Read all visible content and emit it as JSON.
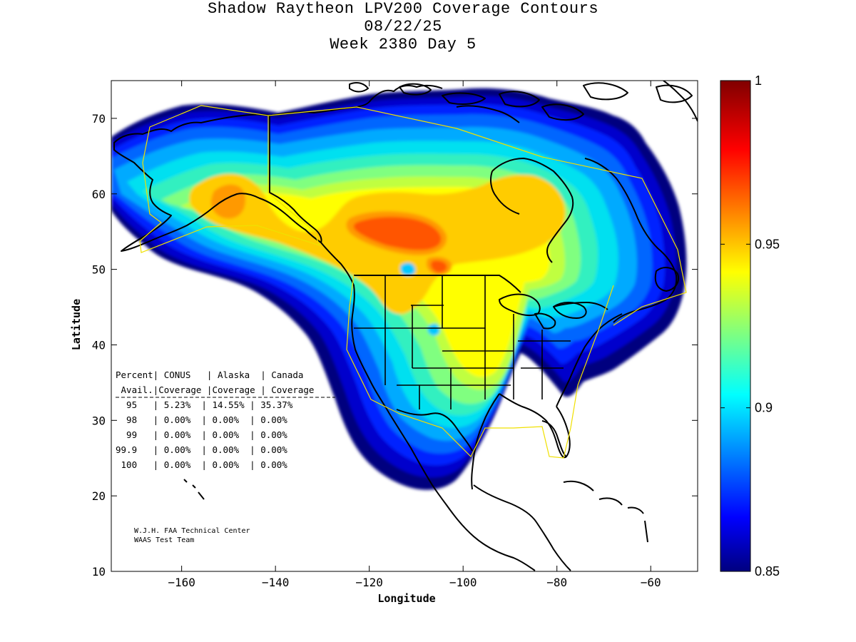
{
  "title": {
    "line1": "Shadow Raytheon LPV200 Coverage Contours",
    "line2": "08/22/25",
    "line3": "Week 2380 Day 5"
  },
  "chart_data": {
    "type": "heatmap",
    "xlabel": "Longitude",
    "ylabel": "Latitude",
    "xlim": [
      -175,
      -50
    ],
    "ylim": [
      10,
      75
    ],
    "x_ticks": [
      -160,
      -140,
      -120,
      -100,
      -80,
      -60
    ],
    "y_ticks": [
      10,
      20,
      30,
      40,
      50,
      60,
      70
    ],
    "colorbar": {
      "min": 0.85,
      "max": 1,
      "ticks": [
        {
          "value": 1,
          "label": "1"
        },
        {
          "value": 0.95,
          "label": "0.95"
        },
        {
          "value": 0.9,
          "label": "0.9"
        },
        {
          "value": 0.85,
          "label": "0.85"
        }
      ],
      "colormap": "jet"
    },
    "coverage_table": {
      "header1": "Percent| CONUS   | Alaska  | Canada",
      "header2": " Avail.|Coverage |Coverage | Coverage",
      "rows": [
        "  95   | 5.23%  | 14.55% | 35.37%",
        "  98   | 0.00%  | 0.00%  | 0.00%",
        "  99   | 0.00%  | 0.00%  | 0.00%",
        "99.9   | 0.00%  | 0.00%  | 0.00%",
        " 100   | 0.00%  | 0.00%  | 0.00%"
      ]
    },
    "credit": {
      "line1": "W.J.H. FAA Technical Center",
      "line2": "WAAS Test Team"
    }
  },
  "colors": {
    "background": "#ffffff",
    "outline": "#000000",
    "service_boundary": "#f0e000"
  }
}
